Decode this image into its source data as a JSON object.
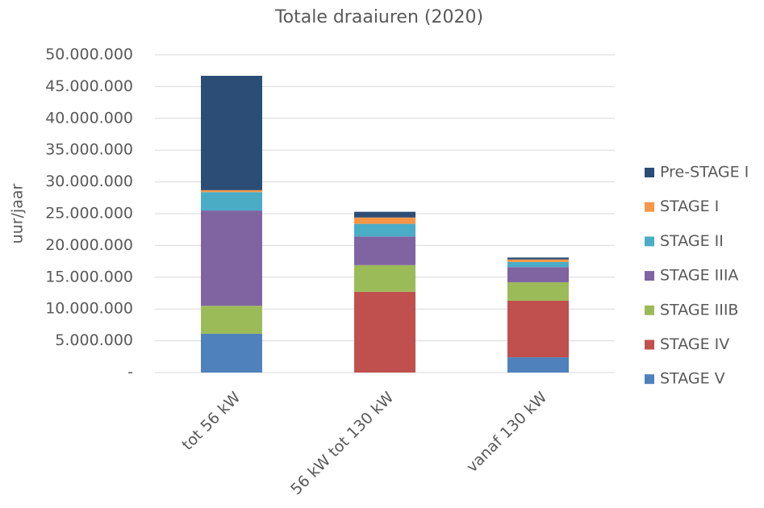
{
  "chart_data": {
    "type": "stacked_bar",
    "title": "Totale draaiuren (2020)",
    "y_label": "uur/jaar",
    "categories": [
      "tot 56 kW",
      "56 kW tot 130 kW",
      "vanaf 130 kW"
    ],
    "series": [
      {
        "name": "STAGE V",
        "color": "#4f81bd",
        "values": [
          6100000,
          0,
          2400000
        ]
      },
      {
        "name": "STAGE IV",
        "color": "#c0504d",
        "values": [
          0,
          12700000,
          8900000
        ]
      },
      {
        "name": "STAGE IIIB",
        "color": "#9bbb59",
        "values": [
          4400000,
          4200000,
          2900000
        ]
      },
      {
        "name": "STAGE IIIA",
        "color": "#8064a2",
        "values": [
          15000000,
          4500000,
          2400000
        ]
      },
      {
        "name": "STAGE II",
        "color": "#4bacc6",
        "values": [
          2900000,
          2000000,
          800000
        ]
      },
      {
        "name": "STAGE I",
        "color": "#f79646",
        "values": [
          300000,
          1000000,
          400000
        ]
      },
      {
        "name": "Pre-STAGE I",
        "color": "#2c4d75",
        "values": [
          18000000,
          900000,
          300000
        ]
      }
    ],
    "ylim": [
      0,
      50000000
    ],
    "yticks": [
      {
        "value": 0,
        "label": "-"
      },
      {
        "value": 5000000,
        "label": "5.000.000"
      },
      {
        "value": 10000000,
        "label": "10.000.000"
      },
      {
        "value": 15000000,
        "label": "15.000.000"
      },
      {
        "value": 20000000,
        "label": "20.000.000"
      },
      {
        "value": 25000000,
        "label": "25.000.000"
      },
      {
        "value": 30000000,
        "label": "30.000.000"
      },
      {
        "value": 35000000,
        "label": "35.000.000"
      },
      {
        "value": 40000000,
        "label": "40.000.000"
      },
      {
        "value": 45000000,
        "label": "45.000.000"
      },
      {
        "value": 50000000,
        "label": "50.000.000"
      }
    ],
    "grid": true,
    "legend": "right"
  }
}
